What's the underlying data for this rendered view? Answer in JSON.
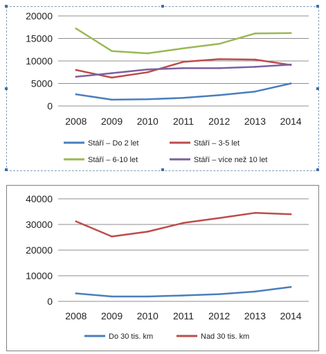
{
  "chart_data": [
    {
      "type": "line",
      "categories": [
        "2008",
        "2009",
        "2010",
        "2011",
        "2012",
        "2013",
        "2014"
      ],
      "ylim": [
        0,
        20000
      ],
      "yticks": [
        0,
        5000,
        10000,
        15000,
        20000
      ],
      "grid": true,
      "legend_position": "bottom",
      "series": [
        {
          "name": "Stáří – Do 2 let",
          "color": "#4a7ebb",
          "values": [
            2600,
            1400,
            1500,
            1800,
            2400,
            3200,
            5000
          ]
        },
        {
          "name": "Stáří – 3-5 let",
          "color": "#be4b48",
          "values": [
            8000,
            6300,
            7500,
            9800,
            10400,
            10300,
            9100
          ]
        },
        {
          "name": "Stáří – 6-10 let",
          "color": "#98b954",
          "values": [
            17200,
            12200,
            11700,
            12800,
            13800,
            16100,
            16200
          ]
        },
        {
          "name": "Stáří – více než 10 let",
          "color": "#7d60a0",
          "values": [
            6500,
            7300,
            8100,
            8400,
            8400,
            8700,
            9200
          ]
        }
      ]
    },
    {
      "type": "line",
      "categories": [
        "2008",
        "2009",
        "2010",
        "2011",
        "2012",
        "2013",
        "2014"
      ],
      "ylim": [
        0,
        40000
      ],
      "yticks": [
        0,
        10000,
        20000,
        30000,
        40000
      ],
      "grid": true,
      "legend_position": "bottom",
      "series": [
        {
          "name": "Do 30 tis. km",
          "color": "#4a7ebb",
          "values": [
            3100,
            1900,
            1900,
            2300,
            2800,
            3800,
            5600
          ]
        },
        {
          "name": "Nad 30 tis. km",
          "color": "#be4b48",
          "values": [
            31200,
            25300,
            27200,
            30600,
            32500,
            34500,
            34000
          ]
        }
      ]
    }
  ]
}
